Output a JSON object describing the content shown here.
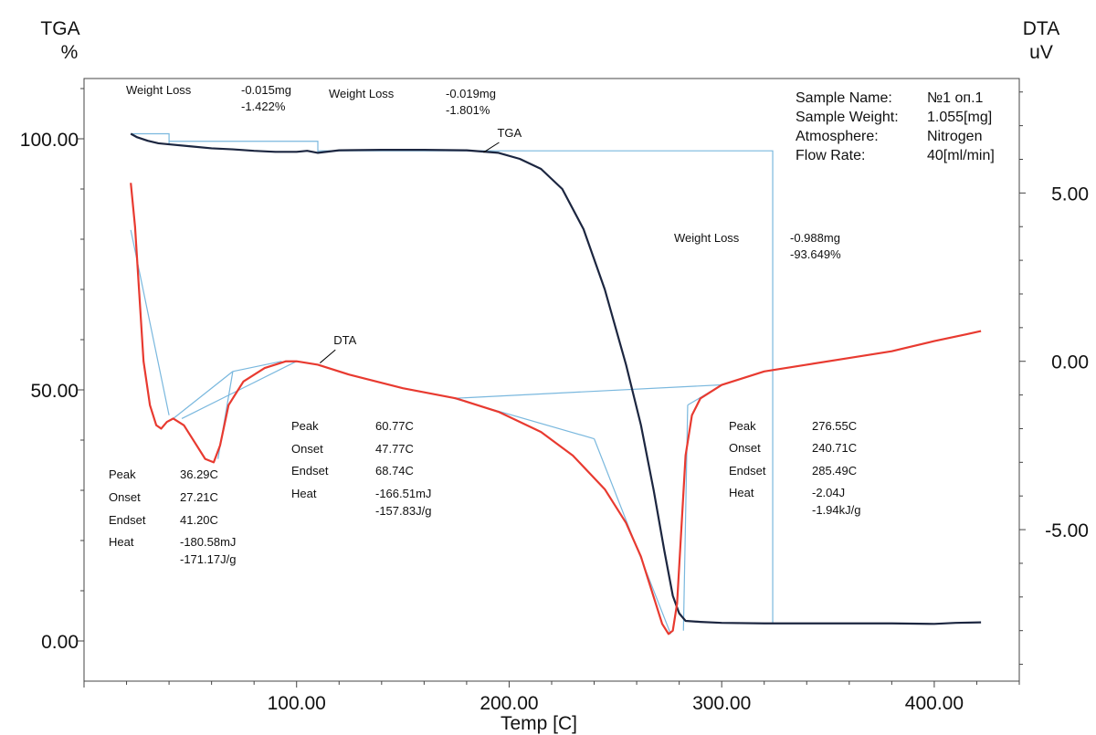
{
  "chart_data": {
    "type": "line",
    "xlabel": "Temp  [C]",
    "y_left_label": [
      "TGA",
      "%"
    ],
    "y_right_label": [
      "DTA",
      "uV"
    ],
    "xlim": [
      0,
      440
    ],
    "ylim_left": [
      -8,
      112
    ],
    "ylim_right": [
      -9.5,
      8.4
    ],
    "x_ticks": [
      {
        "value": 100,
        "label": "100.00"
      },
      {
        "value": 200,
        "label": "200.00"
      },
      {
        "value": 300,
        "label": "300.00"
      },
      {
        "value": 400,
        "label": "400.00"
      }
    ],
    "y_left_ticks": [
      {
        "value": 0,
        "label": "0.00"
      },
      {
        "value": 50,
        "label": "50.00"
      },
      {
        "value": 100,
        "label": "100.00"
      }
    ],
    "y_right_ticks": [
      {
        "value": -5,
        "label": "-5.00"
      },
      {
        "value": 0,
        "label": "0.00"
      },
      {
        "value": 5,
        "label": "5.00"
      }
    ],
    "series": [
      {
        "name": "TGA",
        "axis": "left",
        "color": "#1c2640",
        "points": [
          [
            22,
            101
          ],
          [
            25,
            100.3
          ],
          [
            30,
            99.6
          ],
          [
            35,
            99.1
          ],
          [
            40,
            98.9
          ],
          [
            50,
            98.5
          ],
          [
            60,
            98.1
          ],
          [
            70,
            97.9
          ],
          [
            80,
            97.6
          ],
          [
            90,
            97.4
          ],
          [
            100,
            97.4
          ],
          [
            105,
            97.6
          ],
          [
            110,
            97.2
          ],
          [
            120,
            97.7
          ],
          [
            140,
            97.8
          ],
          [
            160,
            97.8
          ],
          [
            180,
            97.7
          ],
          [
            195,
            97.2
          ],
          [
            205,
            96.0
          ],
          [
            215,
            94.0
          ],
          [
            225,
            90.0
          ],
          [
            235,
            82.0
          ],
          [
            245,
            70.0
          ],
          [
            255,
            55.0
          ],
          [
            262,
            43.0
          ],
          [
            268,
            30.0
          ],
          [
            273,
            18.0
          ],
          [
            277,
            9.0
          ],
          [
            280,
            5.5
          ],
          [
            283,
            4.0
          ],
          [
            290,
            3.8
          ],
          [
            300,
            3.6
          ],
          [
            320,
            3.5
          ],
          [
            350,
            3.5
          ],
          [
            380,
            3.5
          ],
          [
            400,
            3.4
          ],
          [
            410,
            3.6
          ],
          [
            422,
            3.7
          ]
        ]
      },
      {
        "name": "DTA",
        "axis": "right",
        "color": "#e83a30",
        "points": [
          [
            22,
            5.3
          ],
          [
            24,
            4.0
          ],
          [
            26,
            2.0
          ],
          [
            28,
            0.0
          ],
          [
            31,
            -1.3
          ],
          [
            34,
            -1.9
          ],
          [
            36.3,
            -2.0
          ],
          [
            39,
            -1.8
          ],
          [
            42,
            -1.7
          ],
          [
            47,
            -1.9
          ],
          [
            52,
            -2.4
          ],
          [
            57,
            -2.9
          ],
          [
            61,
            -3.0
          ],
          [
            64,
            -2.5
          ],
          [
            68,
            -1.3
          ],
          [
            75,
            -0.6
          ],
          [
            85,
            -0.2
          ],
          [
            95,
            0.0
          ],
          [
            100,
            0.0
          ],
          [
            110,
            -0.1
          ],
          [
            125,
            -0.4
          ],
          [
            150,
            -0.8
          ],
          [
            175,
            -1.1
          ],
          [
            195,
            -1.5
          ],
          [
            215,
            -2.1
          ],
          [
            230,
            -2.8
          ],
          [
            245,
            -3.8
          ],
          [
            255,
            -4.8
          ],
          [
            262,
            -5.8
          ],
          [
            268,
            -7.0
          ],
          [
            272,
            -7.8
          ],
          [
            275,
            -8.1
          ],
          [
            277,
            -8.0
          ],
          [
            279,
            -7.2
          ],
          [
            281,
            -5.0
          ],
          [
            283,
            -2.8
          ],
          [
            286,
            -1.6
          ],
          [
            290,
            -1.1
          ],
          [
            300,
            -0.7
          ],
          [
            320,
            -0.3
          ],
          [
            340,
            -0.1
          ],
          [
            360,
            0.1
          ],
          [
            380,
            0.3
          ],
          [
            400,
            0.6
          ],
          [
            415,
            0.8
          ],
          [
            422,
            0.9
          ]
        ]
      }
    ],
    "baselines": {
      "color": "#7ab8de",
      "tga_steps": [
        [
          [
            22,
            101
          ],
          [
            40,
            101
          ],
          [
            40,
            98.9
          ]
        ],
        [
          [
            40,
            99.5
          ],
          [
            110,
            99.5
          ],
          [
            110,
            97.2
          ]
        ],
        [
          [
            110,
            97.6
          ],
          [
            324,
            97.6
          ],
          [
            324,
            3.5
          ]
        ]
      ],
      "dta_lines": [
        [
          [
            22,
            3.9
          ],
          [
            40,
            -1.6
          ]
        ],
        [
          [
            42,
            -1.7
          ],
          [
            70,
            -0.3
          ]
        ],
        [
          [
            70,
            -0.3
          ],
          [
            93,
            0.0
          ]
        ],
        [
          [
            63,
            -2.9
          ],
          [
            70,
            -0.3
          ]
        ],
        [
          [
            46,
            -1.7
          ],
          [
            100,
            0.0
          ]
        ],
        [
          [
            174,
            -1.1
          ],
          [
            240,
            -2.3
          ]
        ],
        [
          [
            240,
            -2.3
          ],
          [
            276,
            -8.1
          ]
        ],
        [
          [
            174,
            -1.1
          ],
          [
            300,
            -0.7
          ]
        ],
        [
          [
            284,
            -1.3
          ],
          [
            300,
            -0.7
          ]
        ],
        [
          [
            282,
            -8.0
          ],
          [
            284,
            -1.3
          ]
        ]
      ]
    },
    "leaders": {
      "color": "#000000",
      "items": [
        {
          "from": [
            188,
            97.3
          ],
          "label_at": [
            197,
            100.0
          ],
          "axis": "left",
          "label": "TGA"
        },
        {
          "from": [
            111,
            -0.05
          ],
          "label_at": [
            120,
            0.45
          ],
          "axis": "right",
          "label": "DTA"
        }
      ]
    }
  },
  "annotations": {
    "weight_loss_1": {
      "label": "Weight Loss",
      "mass": "-0.015mg",
      "percent": "-1.422%"
    },
    "weight_loss_2": {
      "label": "Weight Loss",
      "mass": "-0.019mg",
      "percent": "-1.801%"
    },
    "weight_loss_3": {
      "label": "Weight Loss",
      "mass": "-0.988mg",
      "percent": "-93.649%"
    },
    "peak_1": {
      "peak_label": "Peak",
      "peak": "36.29C",
      "onset_label": "Onset",
      "onset": "27.21C",
      "endset_label": "Endset",
      "endset": "41.20C",
      "heat_label": "Heat",
      "heat": "-180.58mJ",
      "heat_per_g": "-171.17J/g"
    },
    "peak_2": {
      "peak_label": "Peak",
      "peak": "60.77C",
      "onset_label": "Onset",
      "onset": "47.77C",
      "endset_label": "Endset",
      "endset": "68.74C",
      "heat_label": "Heat",
      "heat": "-166.51mJ",
      "heat_per_g": "-157.83J/g"
    },
    "peak_3": {
      "peak_label": "Peak",
      "peak": "276.55C",
      "onset_label": "Onset",
      "onset": "240.71C",
      "endset_label": "Endset",
      "endset": "285.49C",
      "heat_label": "Heat",
      "heat": "-2.04J",
      "heat_per_g": "-1.94kJ/g"
    }
  },
  "sample_info": {
    "name_label": "Sample Name:",
    "name": "№1 оп.1",
    "weight_label": "Sample Weight:",
    "weight": "1.055[mg]",
    "atmosphere_label": "Atmosphere:",
    "atmosphere": "Nitrogen",
    "flow_label": "Flow Rate:",
    "flow": "40[ml/min]"
  }
}
